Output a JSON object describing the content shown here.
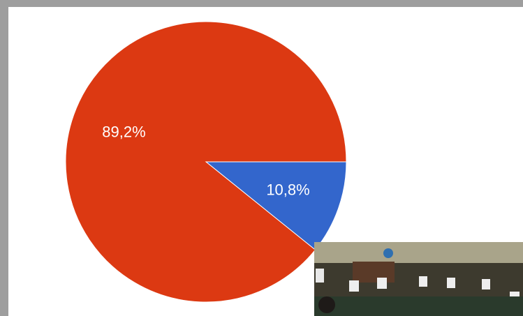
{
  "chart_data": {
    "type": "pie",
    "values": [
      10.8,
      89.2
    ],
    "value_labels": [
      "10,8%",
      "89,2%"
    ],
    "colors": [
      "#3366cc",
      "#dc3912"
    ]
  }
}
